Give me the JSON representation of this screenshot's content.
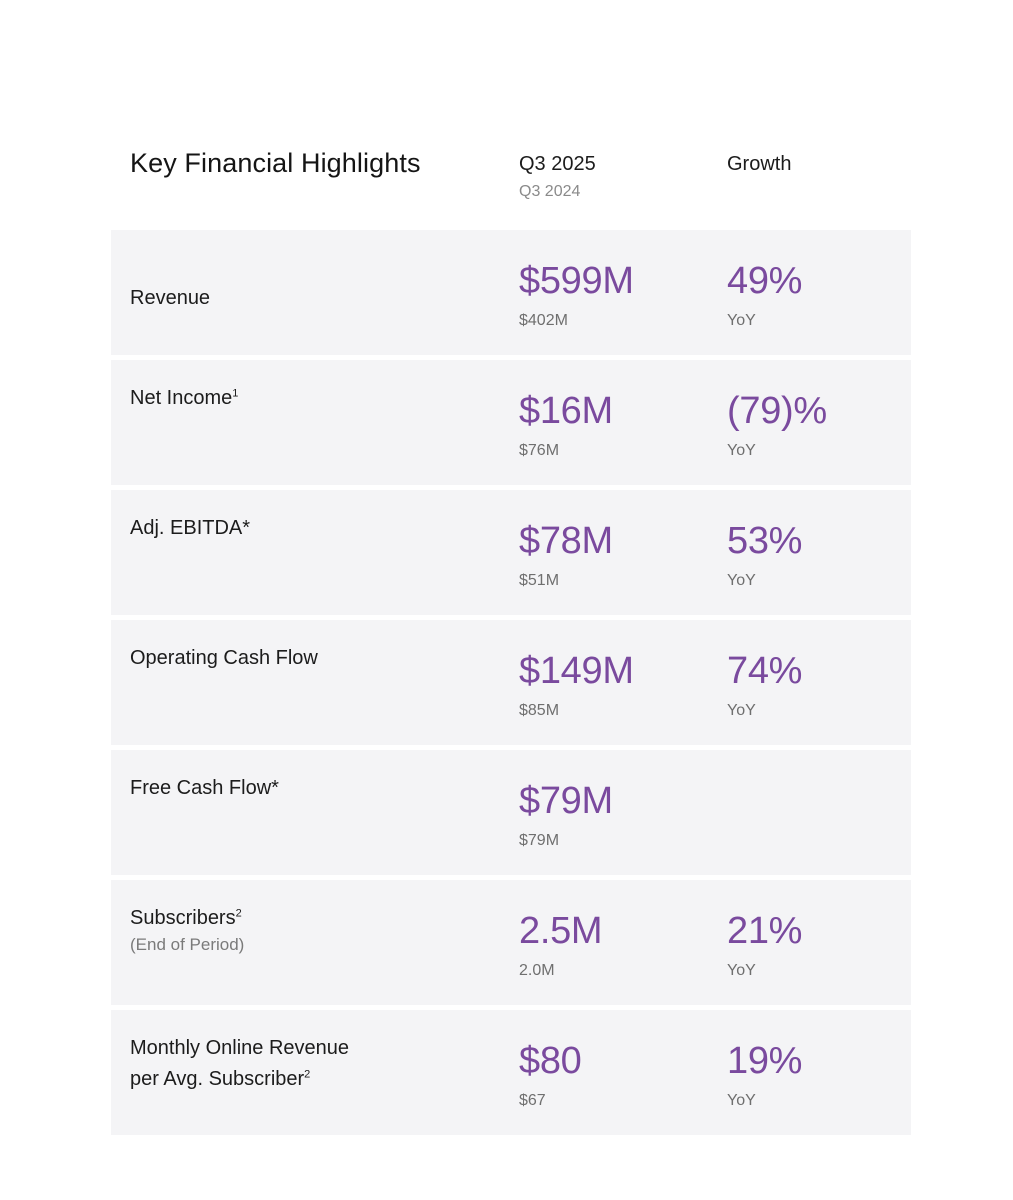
{
  "header": {
    "title": "Key Financial Highlights",
    "period_current": "Q3 2025",
    "period_prior": "Q3 2024",
    "growth_label": "Growth"
  },
  "rows": [
    {
      "label": "Revenue",
      "sup": "",
      "sublabel": "",
      "label_line2": "",
      "value": "$599M",
      "prior": "$402M",
      "growth": "49%",
      "growth_unit": "YoY"
    },
    {
      "label": "Net Income",
      "sup": "1",
      "sublabel": "",
      "label_line2": "",
      "value": "$16M",
      "prior": "$76M",
      "growth": "(79)%",
      "growth_unit": "YoY"
    },
    {
      "label": "Adj. EBITDA*",
      "sup": "",
      "sublabel": "",
      "label_line2": "",
      "value": "$78M",
      "prior": "$51M",
      "growth": "53%",
      "growth_unit": "YoY"
    },
    {
      "label": "Operating Cash Flow",
      "sup": "",
      "sublabel": "",
      "label_line2": "",
      "value": "$149M",
      "prior": "$85M",
      "growth": "74%",
      "growth_unit": "YoY"
    },
    {
      "label": "Free Cash Flow*",
      "sup": "",
      "sublabel": "",
      "label_line2": "",
      "value": "$79M",
      "prior": "$79M",
      "growth": "",
      "growth_unit": ""
    },
    {
      "label": "Subscribers",
      "sup": "2",
      "sublabel": "(End of Period)",
      "label_line2": "",
      "value": "2.5M",
      "prior": "2.0M",
      "growth": "21%",
      "growth_unit": "YoY"
    },
    {
      "label": "Monthly Online Revenue",
      "label_line2": "per Avg. Subscriber",
      "sup": "2",
      "sublabel": "",
      "value": "$80",
      "prior": "$67",
      "growth": "19%",
      "growth_unit": "YoY"
    }
  ],
  "colors": {
    "accent": "#7a4a9e",
    "row_bg": "#f4f4f6"
  }
}
